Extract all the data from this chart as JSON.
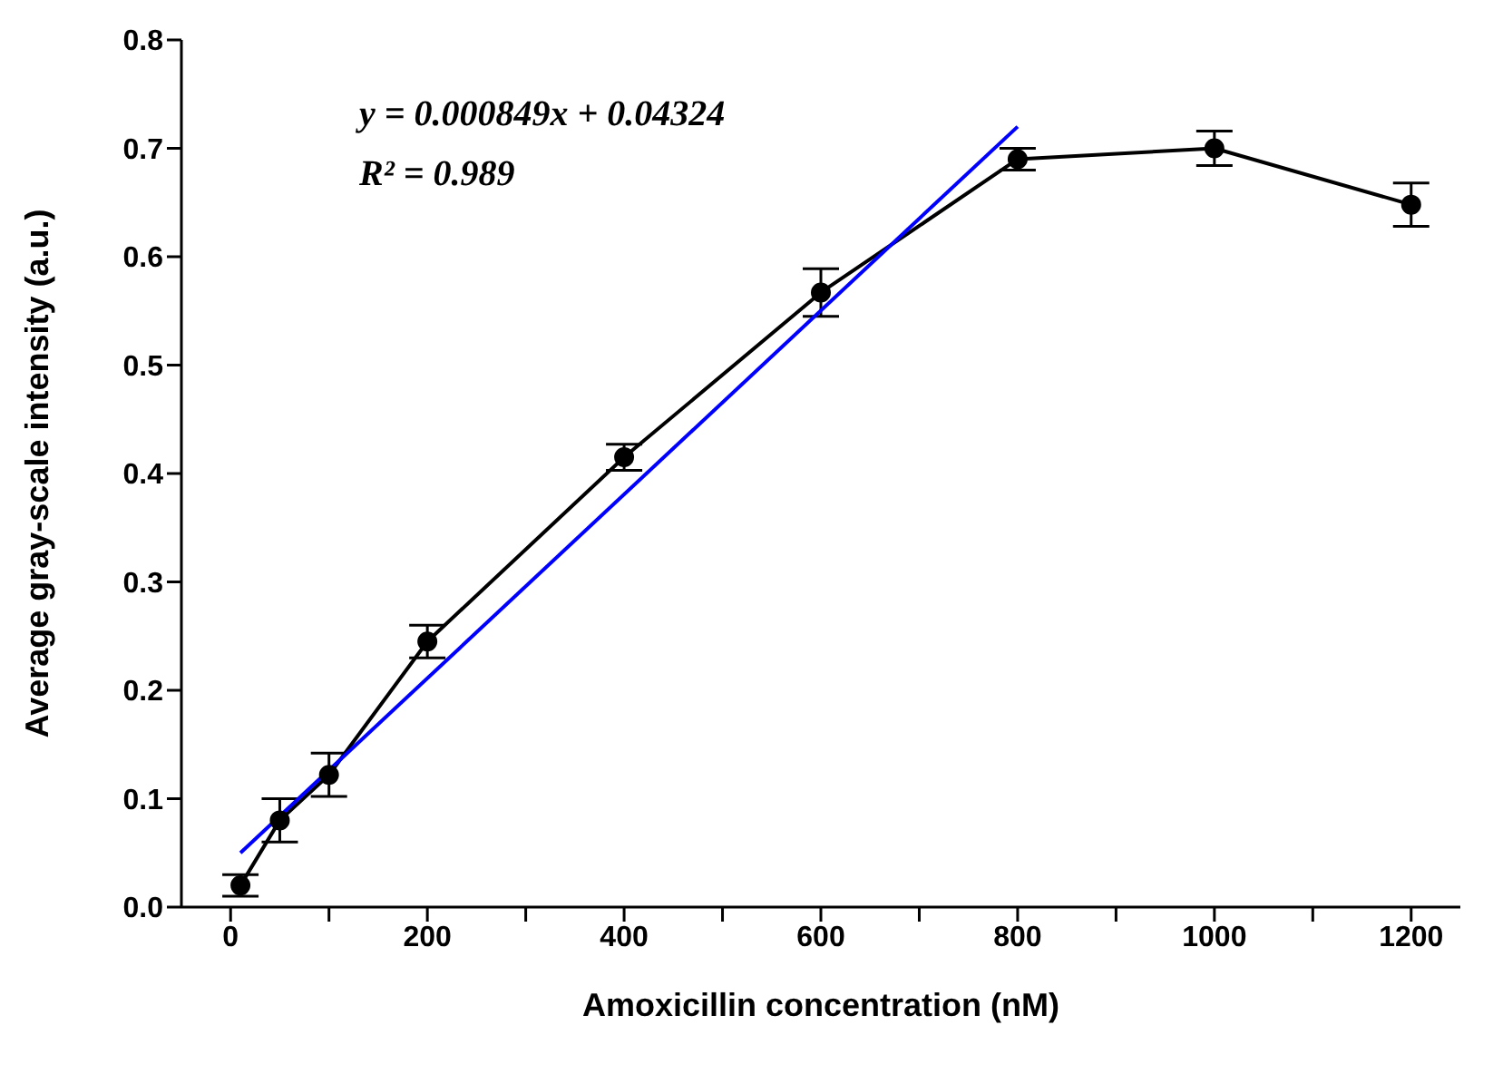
{
  "chart_data": {
    "type": "line",
    "xlabel": "Amoxicillin concentration (nM)",
    "ylabel": "Average gray-scale intensity (a.u.)",
    "annotations": [
      "y = 0.000849x + 0.04324",
      "R² = 0.989"
    ],
    "xlim": [
      -50,
      1250
    ],
    "xticks": [
      0,
      {
        "value": 100,
        "label": null
      },
      200,
      {
        "value": 300,
        "label": null
      },
      400,
      {
        "value": 500,
        "label": null
      },
      600,
      {
        "value": 700,
        "label": null
      },
      800,
      {
        "value": 900,
        "label": null
      },
      1000,
      {
        "value": 1100,
        "label": null
      },
      1200
    ],
    "ylim": [
      0,
      0.8
    ],
    "yticks": [
      {
        "value": 0,
        "label": "0.0"
      },
      0.1,
      0.2,
      0.3,
      0.4,
      0.5,
      0.6,
      0.7,
      0.8
    ],
    "grid": false,
    "legend": false,
    "line_style": "solid",
    "series": [
      {
        "color": "#000000",
        "marker": "circle",
        "x": [
          10,
          50,
          100,
          200,
          400,
          600,
          800,
          1000,
          1200
        ],
        "values": [
          0.02,
          0.08,
          0.122,
          0.245,
          0.415,
          0.567,
          0.69,
          0.7,
          0.648
        ],
        "errors": [
          0.01,
          0.02,
          0.02,
          0.015,
          0.012,
          0.022,
          0.01,
          0.016,
          0.02
        ]
      },
      {
        "color": "#0000ff",
        "marker": "none",
        "x": [
          10,
          800
        ],
        "values": [
          0.05,
          0.72
        ]
      }
    ]
  }
}
